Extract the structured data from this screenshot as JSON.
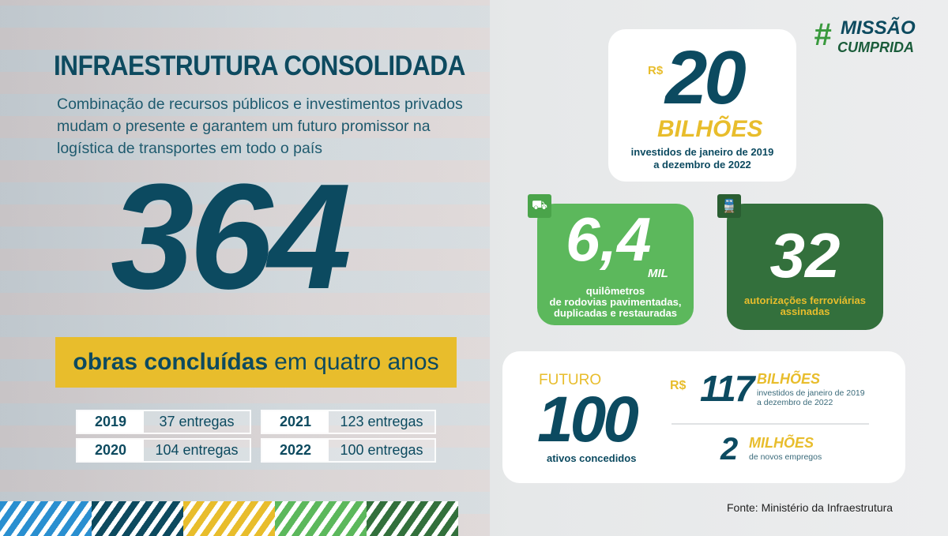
{
  "logo": {
    "text": "#MISSÃO CUMPRIDA"
  },
  "title": "INFRAESTRUTURA CONSOLIDADA",
  "subtitle": "Combinação de recursos públicos e investimentos privados mudam o presente e garantem um futuro promissor na logística de transportes em todo o país",
  "obras": {
    "number": "364",
    "bold": "obras concluídas",
    "rest": "em quatro anos"
  },
  "years": [
    {
      "year": "2019",
      "value": "37 entregas"
    },
    {
      "year": "2020",
      "value": "104 entregas"
    },
    {
      "year": "2021",
      "value": "123 entregas"
    },
    {
      "year": "2022",
      "value": "100 entregas"
    }
  ],
  "investment": {
    "currency": "R$",
    "number": "20",
    "unit": "BILHÕES",
    "desc1": "investidos de janeiro de 2019",
    "desc2": "a dezembro de 2022"
  },
  "roads": {
    "icon": "truck-icon",
    "number": "6,4",
    "unit": "MIL",
    "desc1": "quilômetros",
    "desc2": "de rodovias pavimentadas,",
    "desc3": "duplicadas e restauradas"
  },
  "rail": {
    "icon": "train-icon",
    "number": "32",
    "desc1": "autorizações ferroviárias",
    "desc2": "assinadas"
  },
  "future": {
    "label": "FUTURO",
    "number": "100",
    "desc": "ativos concedidos",
    "invest": {
      "currency": "R$",
      "number": "117",
      "unit": "BILHÕES",
      "desc1": "investidos de janeiro de 2019",
      "desc2": "a dezembro de 2022"
    },
    "jobs": {
      "number": "2",
      "unit": "MILHÕES",
      "desc": "de novos empregos"
    }
  },
  "source": "Fonte: Ministério da Infraestrutura",
  "colors": {
    "teal": "#0c4a60",
    "yellow": "#e8bd2c",
    "green": "#5cb85c",
    "dark_green": "#33703c"
  }
}
